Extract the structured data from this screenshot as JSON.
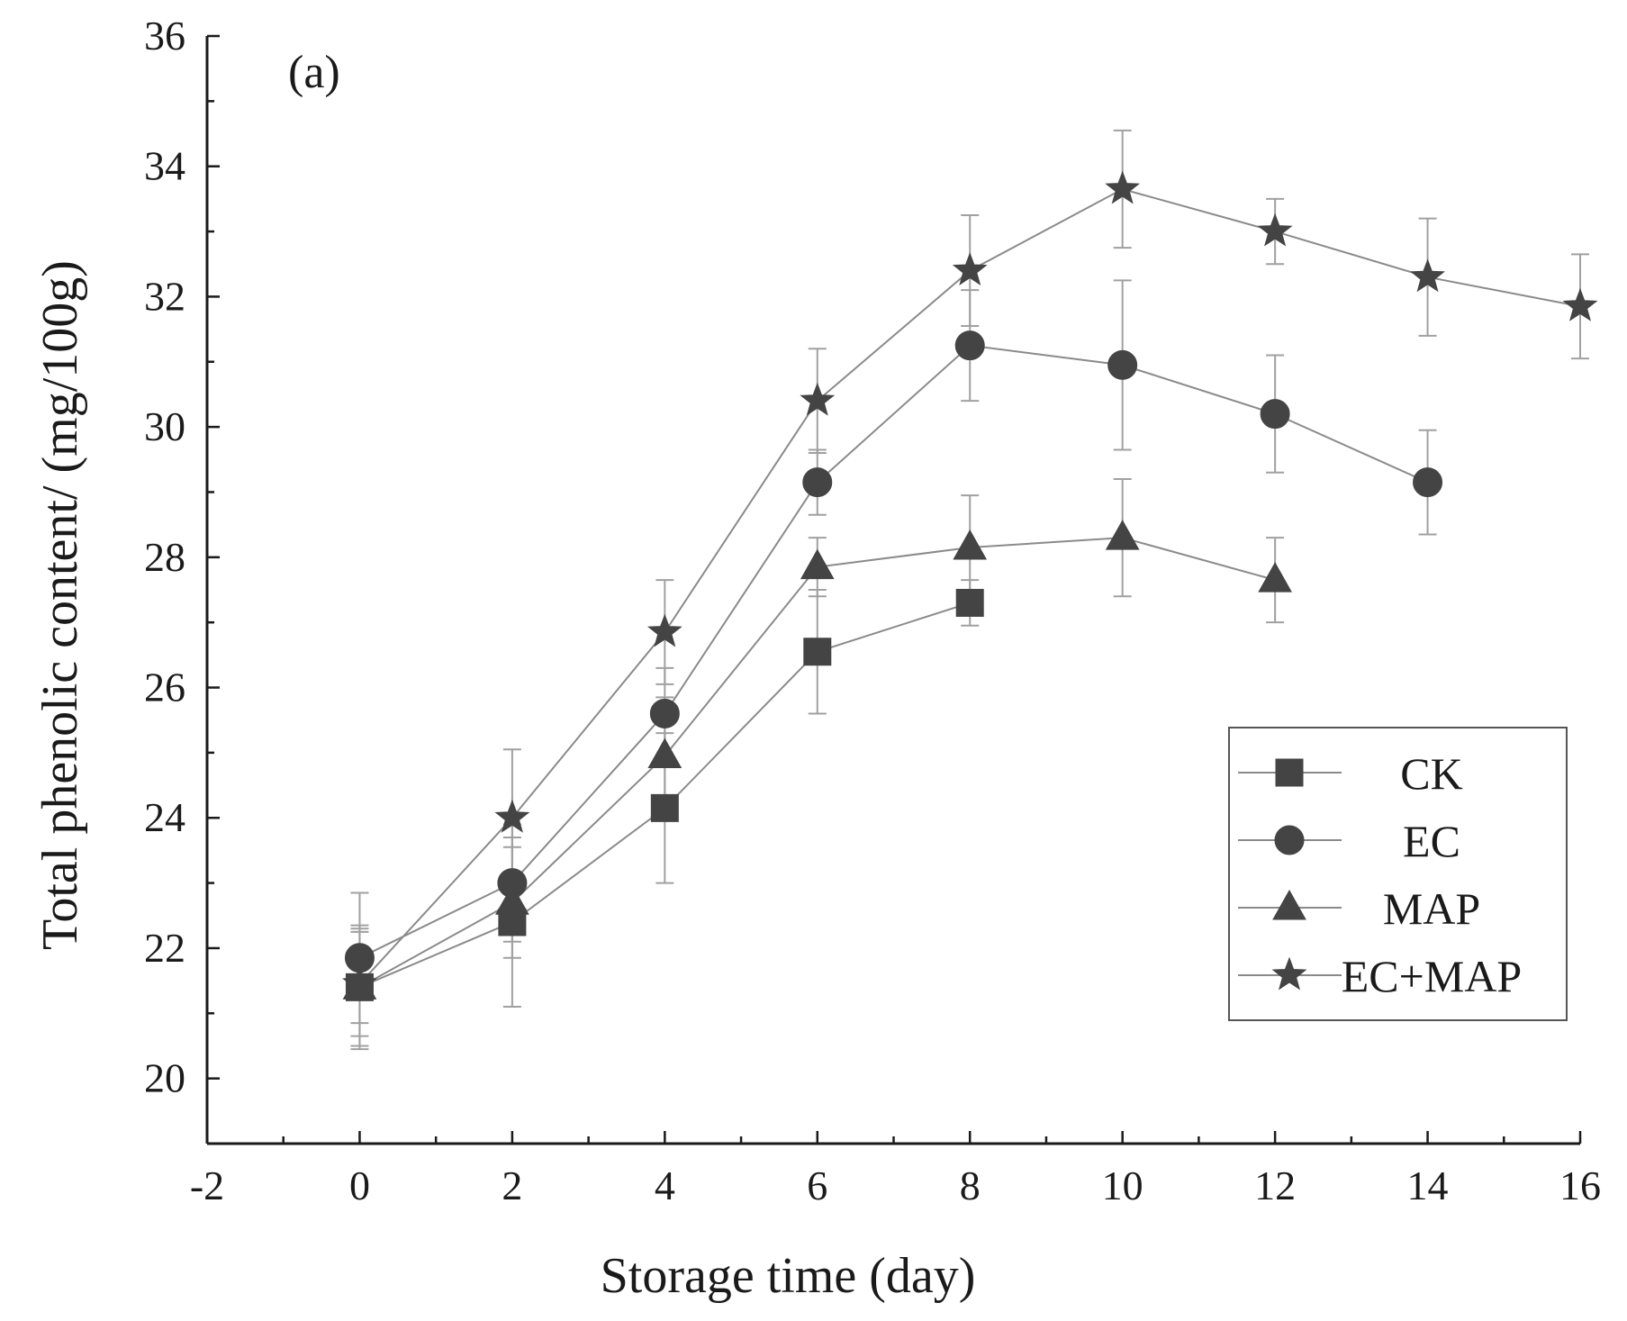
{
  "chart_data": {
    "type": "line",
    "panel_label": "(a)",
    "xlabel": "Storage time (day)",
    "ylabel": "Total phenolic content/ (mg/100g)",
    "xlim": [
      -2,
      16
    ],
    "ylim": [
      19,
      36
    ],
    "xticks": [
      -2,
      0,
      2,
      4,
      6,
      8,
      10,
      12,
      14,
      16
    ],
    "yticks": [
      20,
      22,
      24,
      26,
      28,
      30,
      32,
      34,
      36
    ],
    "legend_position": "bottom-right",
    "series": [
      {
        "name": "CK",
        "marker": "square",
        "x": [
          0,
          2,
          4,
          6,
          8
        ],
        "values": [
          21.4,
          22.4,
          24.15,
          26.55,
          27.3
        ],
        "errors": [
          0.95,
          1.3,
          1.15,
          0.95,
          0.35
        ]
      },
      {
        "name": "EC",
        "marker": "circle",
        "x": [
          0,
          2,
          4,
          6,
          8,
          10,
          12,
          14
        ],
        "values": [
          21.85,
          23.0,
          25.6,
          29.15,
          31.25,
          30.95,
          30.2,
          29.15
        ],
        "errors": [
          1.0,
          0.9,
          0.7,
          0.5,
          0.85,
          1.3,
          0.9,
          0.8
        ]
      },
      {
        "name": "MAP",
        "marker": "triangle",
        "x": [
          0,
          2,
          4,
          6,
          8,
          10,
          12
        ],
        "values": [
          21.4,
          22.7,
          24.95,
          27.85,
          28.15,
          28.3,
          27.65
        ],
        "errors": [
          0.9,
          0.85,
          0.9,
          0.45,
          0.8,
          0.9,
          0.65
        ]
      },
      {
        "name": "EC+MAP",
        "marker": "star",
        "x": [
          0,
          2,
          4,
          6,
          8,
          10,
          12,
          14,
          16
        ],
        "values": [
          21.45,
          24.0,
          26.85,
          30.4,
          32.4,
          33.65,
          33.0,
          32.3,
          31.85
        ],
        "errors": [
          0.8,
          1.05,
          0.8,
          0.8,
          0.85,
          0.9,
          0.5,
          0.9,
          0.8
        ]
      }
    ]
  }
}
